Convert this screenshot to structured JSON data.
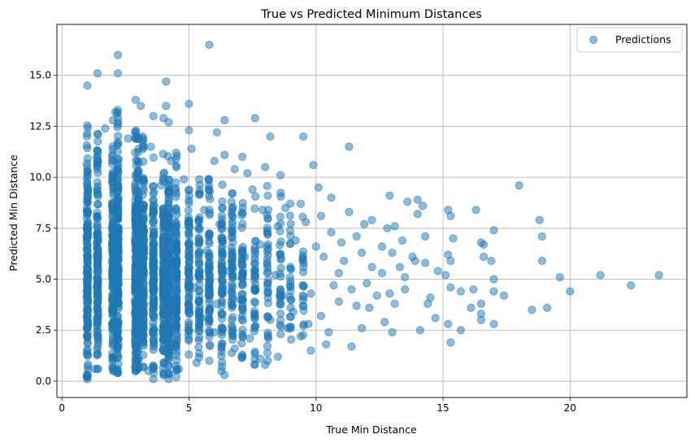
{
  "chart_data": {
    "type": "scatter",
    "title": "True vs Predicted Minimum Distances",
    "xlabel": "True Min Distance",
    "ylabel": "Predicted Min Distance",
    "xlim": [
      -0.2,
      24.6
    ],
    "ylim": [
      -0.8,
      17.5
    ],
    "x_ticks": [
      0,
      5,
      10,
      15,
      20
    ],
    "y_ticks": [
      0.0,
      2.5,
      5.0,
      7.5,
      10.0,
      12.5,
      15.0
    ],
    "x_tick_labels": [
      "0",
      "5",
      "10",
      "15",
      "20"
    ],
    "y_tick_labels": [
      "0.0",
      "2.5",
      "5.0",
      "7.5",
      "10.0",
      "12.5",
      "15.0"
    ],
    "grid": true,
    "legend": {
      "position": "top-right",
      "entries": [
        "Predictions"
      ]
    },
    "marker_color": "#1f77b4",
    "marker_alpha": 0.5,
    "series": [
      {
        "name": "Predictions",
        "points": [
          [
            5.8,
            16.5
          ],
          [
            2.2,
            16.0
          ],
          [
            1.4,
            15.1
          ],
          [
            2.2,
            15.1
          ],
          [
            1.0,
            14.5
          ],
          [
            4.1,
            14.7
          ],
          [
            2.9,
            13.8
          ],
          [
            3.1,
            13.5
          ],
          [
            4.1,
            13.5
          ],
          [
            5.0,
            13.6
          ],
          [
            2.1,
            13.2
          ],
          [
            2.2,
            13.3
          ],
          [
            3.6,
            13.0
          ],
          [
            4.0,
            12.9
          ],
          [
            6.4,
            12.8
          ],
          [
            7.6,
            12.9
          ],
          [
            4.2,
            12.7
          ],
          [
            6.1,
            12.2
          ],
          [
            5.0,
            12.3
          ],
          [
            8.2,
            12.0
          ],
          [
            9.5,
            12.0
          ],
          [
            11.3,
            11.5
          ],
          [
            7.1,
            11.0
          ],
          [
            6.4,
            11.1
          ],
          [
            5.1,
            11.4
          ],
          [
            4.5,
            11.2
          ],
          [
            6.0,
            10.8
          ],
          [
            8.0,
            10.5
          ],
          [
            9.9,
            10.6
          ],
          [
            6.8,
            10.4
          ],
          [
            7.3,
            10.2
          ],
          [
            8.6,
            10.1
          ],
          [
            10.1,
            9.5
          ],
          [
            10.6,
            9.0
          ],
          [
            12.9,
            9.1
          ],
          [
            13.6,
            8.8
          ],
          [
            14.0,
            8.9
          ],
          [
            14.2,
            8.6
          ],
          [
            18.0,
            9.6
          ],
          [
            16.3,
            8.4
          ],
          [
            15.2,
            8.4
          ],
          [
            15.3,
            8.1
          ],
          [
            14.0,
            8.2
          ],
          [
            18.8,
            7.9
          ],
          [
            17.0,
            7.4
          ],
          [
            13.1,
            7.6
          ],
          [
            12.2,
            7.9
          ],
          [
            11.9,
            7.7
          ],
          [
            12.8,
            7.5
          ],
          [
            14.3,
            7.1
          ],
          [
            15.4,
            7.0
          ],
          [
            16.6,
            6.7
          ],
          [
            16.5,
            6.8
          ],
          [
            18.9,
            7.1
          ],
          [
            13.4,
            6.9
          ],
          [
            11.6,
            7.1
          ],
          [
            12.6,
            6.6
          ],
          [
            15.2,
            6.2
          ],
          [
            15.3,
            5.9
          ],
          [
            13.8,
            6.1
          ],
          [
            13.9,
            5.9
          ],
          [
            16.9,
            5.9
          ],
          [
            18.9,
            5.9
          ],
          [
            14.3,
            5.8
          ],
          [
            12.6,
            5.3
          ],
          [
            13.5,
            5.1
          ],
          [
            14.8,
            5.4
          ],
          [
            16.6,
            6.1
          ],
          [
            19.6,
            5.1
          ],
          [
            21.2,
            5.2
          ],
          [
            22.4,
            4.7
          ],
          [
            23.5,
            5.2
          ],
          [
            20.0,
            4.4
          ],
          [
            17.0,
            5.0
          ],
          [
            15.1,
            5.2
          ],
          [
            15.3,
            4.6
          ],
          [
            15.7,
            4.4
          ],
          [
            16.2,
            4.5
          ],
          [
            17.0,
            4.4
          ],
          [
            17.4,
            4.2
          ],
          [
            13.5,
            4.5
          ],
          [
            12.9,
            4.3
          ],
          [
            13.1,
            3.8
          ],
          [
            14.5,
            4.1
          ],
          [
            14.4,
            3.8
          ],
          [
            16.1,
            3.6
          ],
          [
            16.5,
            3.8
          ],
          [
            18.5,
            3.5
          ],
          [
            19.1,
            3.6
          ],
          [
            16.5,
            3.3
          ],
          [
            14.7,
            3.1
          ],
          [
            12.7,
            2.9
          ],
          [
            13.0,
            2.4
          ],
          [
            14.1,
            2.5
          ],
          [
            15.2,
            2.8
          ],
          [
            15.7,
            2.5
          ],
          [
            16.5,
            3.0
          ],
          [
            17.0,
            2.8
          ],
          [
            15.3,
            1.9
          ],
          [
            11.4,
            1.7
          ],
          [
            10.4,
            1.8
          ],
          [
            9.8,
            1.5
          ],
          [
            9.4,
            2.2
          ],
          [
            8.5,
            1.2
          ],
          [
            8.0,
            0.8
          ],
          [
            7.8,
            1.1
          ],
          [
            7.1,
            1.3
          ],
          [
            6.4,
            0.3
          ],
          [
            6.3,
            0.7
          ],
          [
            5.8,
            1.0
          ],
          [
            5.3,
            0.9
          ],
          [
            4.6,
            0.6
          ],
          [
            4.5,
            0.2
          ],
          [
            4.2,
            0.1
          ],
          [
            3.6,
            0.1
          ],
          [
            3.4,
            0.5
          ],
          [
            2.2,
            0.4
          ],
          [
            1.3,
            0.6
          ],
          [
            1.0,
            0.1
          ],
          [
            1.0,
            0.3
          ],
          [
            9.5,
            5.6
          ],
          [
            10.3,
            6.1
          ],
          [
            10.9,
            5.3
          ],
          [
            11.4,
            4.5
          ],
          [
            11.6,
            3.7
          ],
          [
            10.2,
            3.2
          ],
          [
            9.7,
            2.8
          ],
          [
            12.0,
            4.8
          ],
          [
            12.2,
            5.6
          ],
          [
            13.0,
            6.3
          ],
          [
            11.0,
            6.8
          ],
          [
            10.6,
            7.3
          ],
          [
            9.6,
            7.8
          ],
          [
            10.2,
            8.1
          ],
          [
            11.3,
            8.3
          ],
          [
            9.4,
            8.7
          ],
          [
            8.8,
            8.5
          ],
          [
            8.1,
            9.1
          ],
          [
            7.5,
            9.4
          ],
          [
            7.9,
            8.4
          ],
          [
            8.5,
            7.6
          ],
          [
            9.2,
            6.9
          ],
          [
            9.8,
            4.3
          ],
          [
            10.9,
            3.9
          ],
          [
            12.1,
            3.6
          ],
          [
            11.8,
            2.6
          ],
          [
            10.5,
            2.4
          ],
          [
            9.1,
            3.4
          ],
          [
            8.7,
            4.2
          ],
          [
            8.2,
            3.0
          ],
          [
            7.4,
            2.1
          ],
          [
            6.8,
            1.6
          ],
          [
            6.0,
            2.4
          ],
          [
            5.5,
            3.1
          ],
          [
            5.2,
            4.6
          ],
          [
            6.6,
            5.4
          ],
          [
            7.2,
            6.1
          ],
          [
            7.8,
            6.7
          ],
          [
            8.4,
            5.2
          ],
          [
            9.0,
            4.9
          ],
          [
            6.2,
            7.7
          ],
          [
            5.6,
            8.4
          ],
          [
            6.7,
            9.2
          ],
          [
            5.4,
            9.9
          ],
          [
            7.0,
            4.0
          ],
          [
            8.9,
            2.6
          ],
          [
            6.1,
            3.8
          ],
          [
            5.7,
            6.4
          ],
          [
            12.4,
            4.2
          ],
          [
            13.3,
            5.6
          ],
          [
            11.1,
            5.9
          ],
          [
            10.0,
            6.6
          ],
          [
            10.7,
            4.7
          ],
          [
            11.8,
            6.3
          ],
          [
            4.3,
            10.8
          ],
          [
            3.5,
            11.5
          ],
          [
            2.6,
            11.9
          ],
          [
            1.7,
            12.4
          ],
          [
            3.9,
            9.6
          ],
          [
            4.8,
            9.9
          ]
        ],
        "column_clusters": [
          {
            "x": 1.0,
            "y_range": [
              0.2,
              12.6
            ],
            "count": 170
          },
          {
            "x": 1.4,
            "y_range": [
              0.6,
              12.2
            ],
            "count": 140
          },
          {
            "x": 2.0,
            "y_range": [
              0.5,
              13.0
            ],
            "count": 170
          },
          {
            "x": 2.2,
            "y_range": [
              0.4,
              13.3
            ],
            "count": 200
          },
          {
            "x": 2.9,
            "y_range": [
              0.5,
              12.4
            ],
            "count": 180
          },
          {
            "x": 3.0,
            "y_range": [
              0.6,
              12.0
            ],
            "count": 180
          },
          {
            "x": 3.2,
            "y_range": [
              0.7,
              12.1
            ],
            "count": 150
          },
          {
            "x": 3.6,
            "y_range": [
              0.4,
              11.6
            ],
            "count": 120
          },
          {
            "x": 4.0,
            "y_range": [
              0.2,
              11.4
            ],
            "count": 160
          },
          {
            "x": 4.2,
            "y_range": [
              0.3,
              11.3
            ],
            "count": 160
          },
          {
            "x": 4.5,
            "y_range": [
              0.5,
              11.3
            ],
            "count": 130
          },
          {
            "x": 5.0,
            "y_range": [
              1.0,
              10.5
            ],
            "count": 80
          },
          {
            "x": 5.4,
            "y_range": [
              0.9,
              10.0
            ],
            "count": 70
          },
          {
            "x": 5.8,
            "y_range": [
              1.1,
              10.0
            ],
            "count": 70
          },
          {
            "x": 6.3,
            "y_range": [
              0.5,
              10.1
            ],
            "count": 70
          },
          {
            "x": 6.7,
            "y_range": [
              0.9,
              10.4
            ],
            "count": 60
          },
          {
            "x": 7.1,
            "y_range": [
              1.0,
              10.1
            ],
            "count": 55
          },
          {
            "x": 7.6,
            "y_range": [
              0.8,
              9.2
            ],
            "count": 45
          },
          {
            "x": 8.1,
            "y_range": [
              1.0,
              9.9
            ],
            "count": 40
          },
          {
            "x": 8.6,
            "y_range": [
              1.5,
              9.6
            ],
            "count": 30
          },
          {
            "x": 9.0,
            "y_range": [
              1.9,
              8.8
            ],
            "count": 25
          },
          {
            "x": 9.5,
            "y_range": [
              2.0,
              8.1
            ],
            "count": 20
          }
        ]
      }
    ]
  }
}
